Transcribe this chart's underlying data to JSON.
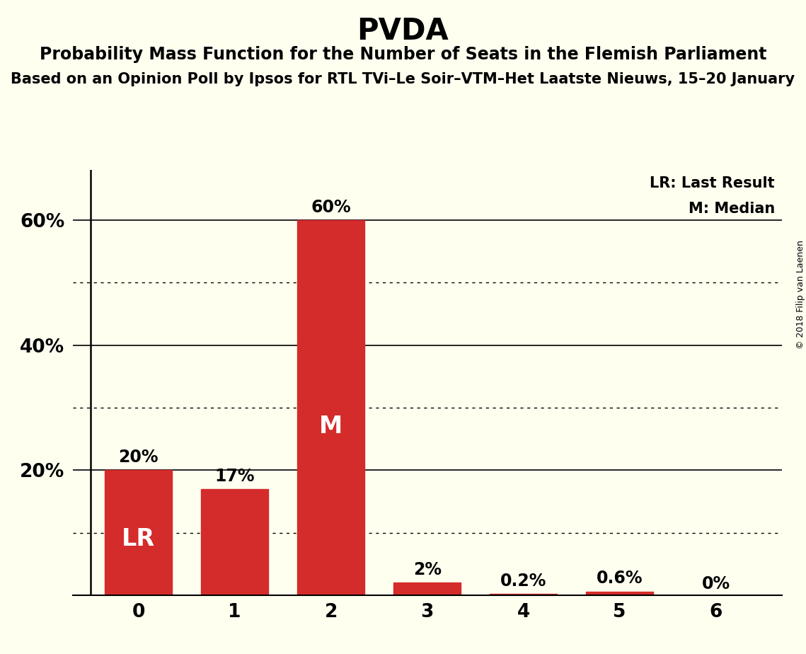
{
  "title": "PVDA",
  "subtitle": "Probability Mass Function for the Number of Seats in the Flemish Parliament",
  "sub_subtitle": "Based on an Opinion Poll by Ipsos for RTL TVi–Le Soir–VTM–Het Laatste Nieuws, 15–20 January",
  "copyright": "© 2018 Filip van Laenen",
  "categories": [
    0,
    1,
    2,
    3,
    4,
    5,
    6
  ],
  "values": [
    0.2,
    0.17,
    0.6,
    0.02,
    0.002,
    0.006,
    0.0
  ],
  "bar_labels": [
    "20%",
    "17%",
    "60%",
    "2%",
    "0.2%",
    "0.6%",
    "0%"
  ],
  "bar_color": "#D42B2B",
  "background_color": "#FFFFF0",
  "lr_bar_index": 0,
  "median_bar_index": 2,
  "lr_label": "LR",
  "median_label": "M",
  "legend_lr": "LR: Last Result",
  "legend_m": "M: Median",
  "ylim": [
    0,
    0.68
  ],
  "yticks": [
    0.0,
    0.2,
    0.4,
    0.6
  ],
  "ytick_labels": [
    "",
    "20%",
    "40%",
    "60%"
  ],
  "dotted_lines": [
    0.1,
    0.3,
    0.5
  ],
  "solid_lines": [
    0.2,
    0.4,
    0.6
  ],
  "title_fontsize": 30,
  "subtitle_fontsize": 17,
  "sub_subtitle_fontsize": 15,
  "bar_label_fontsize": 17,
  "inside_label_fontsize": 24,
  "axis_tick_fontsize": 19,
  "legend_fontsize": 15,
  "copyright_fontsize": 9
}
